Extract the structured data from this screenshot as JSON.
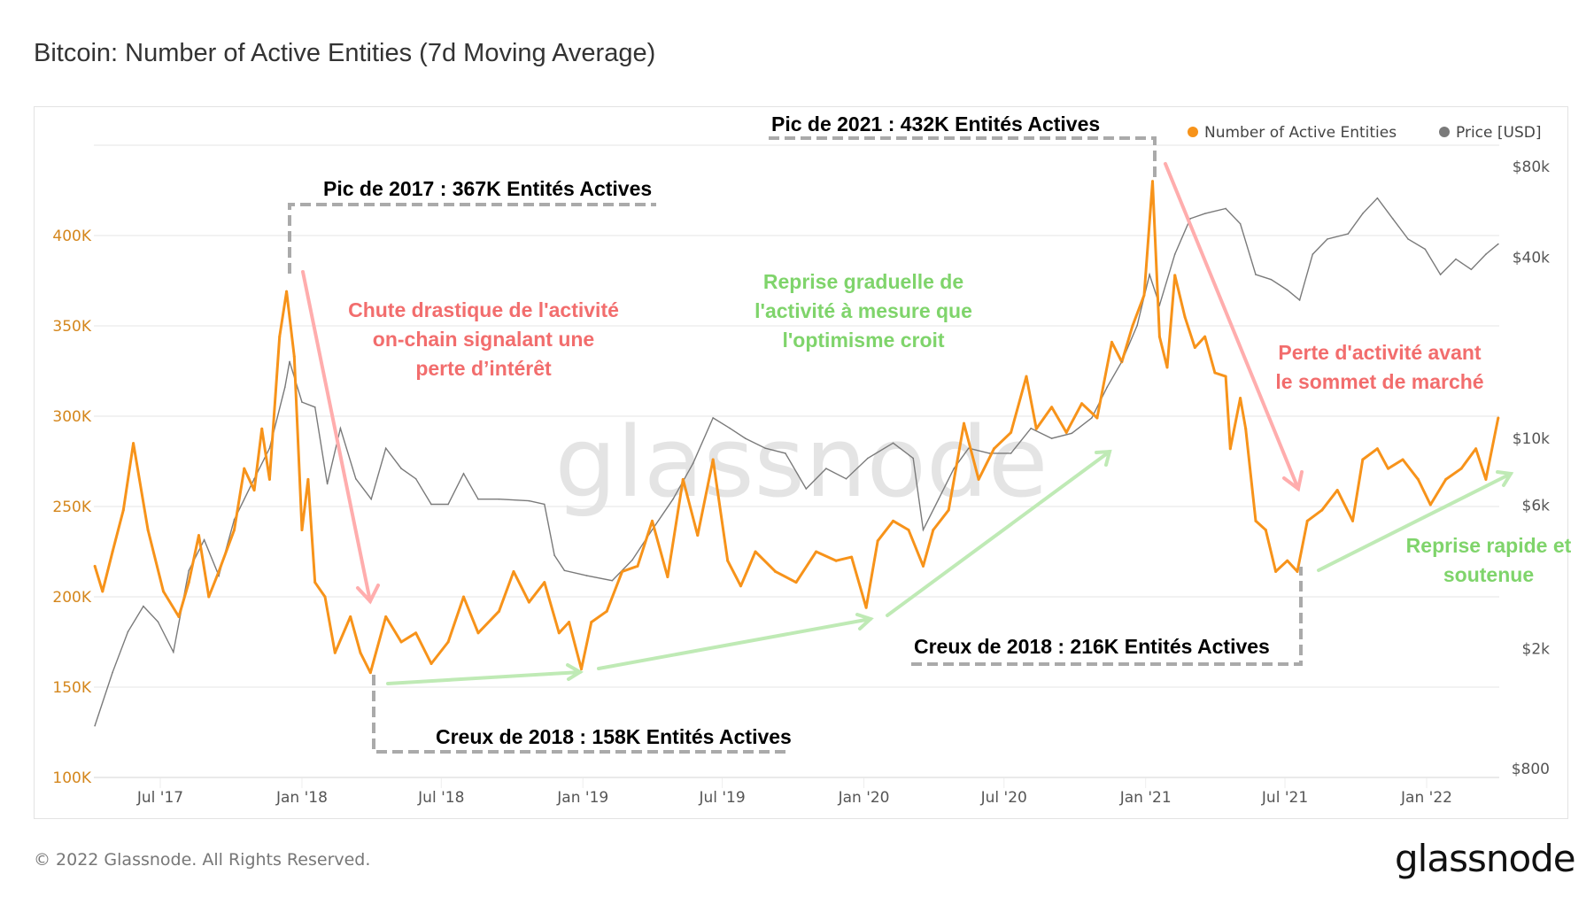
{
  "title": "Bitcoin: Number of Active Entities (7d Moving Average)",
  "footer": {
    "copyright": "© 2022 Glassnode. All Rights Reserved.",
    "logo": "glassnode"
  },
  "watermark": "glassnode",
  "colors": {
    "entities": "#f7931a",
    "price": "#7a7a7a",
    "red_annotation": "#f26d6d",
    "green_annotation": "#7fd46b",
    "red_arrow": "#ffadad",
    "green_arrow": "#bfeab5",
    "dashed": "#aaaaaa"
  },
  "annotations": {
    "peak_2017": "Pic de 2017 : 367K Entités Actives",
    "peak_2021": "Pic de 2021 : 432K Entités Actives",
    "trough_2018_a": "Creux de 2018 : 158K Entités Actives",
    "trough_2018_b": "Creux de 2018 : 216K Entités Actives",
    "drop_text": [
      "Chute drastique de l'activité",
      "on-chain signalant une",
      "perte d’intérêt"
    ],
    "recovery_text": [
      "Reprise graduelle de",
      "l'activité à mesure que",
      "l'optimisme croit"
    ],
    "loss_text": [
      "Perte d'activité avant",
      "le sommet de marché"
    ],
    "rapid_text": [
      "Reprise rapide et",
      "soutenue"
    ]
  },
  "chart_data": {
    "type": "line",
    "title": "Bitcoin: Number of Active Entities (7d Moving Average)",
    "legend_position": "top-right",
    "grid": true,
    "x_ticks": [
      "Jul '17",
      "Jan '18",
      "Jul '18",
      "Jan '19",
      "Jul '19",
      "Jan '20",
      "Jul '20",
      "Jan '21",
      "Jul '21",
      "Jan '22"
    ],
    "y_left": {
      "ticks": [
        "100K",
        "150K",
        "200K",
        "250K",
        "300K",
        "350K",
        "400K"
      ],
      "range": [
        100000,
        450000
      ]
    },
    "y_right": {
      "scale": "log",
      "ticks": [
        "$800",
        "$2k",
        "$6k",
        "$10k",
        "$40k",
        "$80k"
      ],
      "tick_values": [
        800,
        2000,
        6000,
        10000,
        40000,
        80000
      ]
    },
    "series": [
      {
        "name": "Number of Active Entities",
        "axis": "left",
        "points": [
          [
            "2017-04-07",
            217000
          ],
          [
            "2017-04-17",
            203000
          ],
          [
            "2017-04-30",
            225000
          ],
          [
            "2017-05-14",
            248000
          ],
          [
            "2017-05-27",
            285000
          ],
          [
            "2017-06-15",
            237000
          ],
          [
            "2017-07-05",
            203000
          ],
          [
            "2017-07-25",
            189000
          ],
          [
            "2017-08-07",
            208000
          ],
          [
            "2017-08-20",
            234000
          ],
          [
            "2017-09-02",
            200000
          ],
          [
            "2017-09-15",
            214000
          ],
          [
            "2017-10-05",
            237000
          ],
          [
            "2017-10-18",
            271000
          ],
          [
            "2017-10-31",
            259000
          ],
          [
            "2017-11-10",
            293000
          ],
          [
            "2017-11-20",
            265000
          ],
          [
            "2017-12-03",
            344000
          ],
          [
            "2017-12-12",
            369000
          ],
          [
            "2017-12-22",
            333000
          ],
          [
            "2018-01-01",
            237000
          ],
          [
            "2018-01-09",
            265000
          ],
          [
            "2018-01-18",
            208000
          ],
          [
            "2018-01-31",
            200000
          ],
          [
            "2018-02-13",
            169000
          ],
          [
            "2018-03-05",
            189000
          ],
          [
            "2018-03-18",
            169000
          ],
          [
            "2018-03-31",
            158000
          ],
          [
            "2018-04-20",
            189000
          ],
          [
            "2018-05-10",
            175000
          ],
          [
            "2018-05-29",
            180000
          ],
          [
            "2018-06-18",
            163000
          ],
          [
            "2018-07-10",
            175000
          ],
          [
            "2018-07-30",
            200000
          ],
          [
            "2018-08-18",
            180000
          ],
          [
            "2018-09-14",
            192000
          ],
          [
            "2018-10-03",
            214000
          ],
          [
            "2018-10-23",
            197000
          ],
          [
            "2018-11-12",
            208000
          ],
          [
            "2018-12-01",
            180000
          ],
          [
            "2018-12-14",
            186000
          ],
          [
            "2018-12-30",
            160000
          ],
          [
            "2019-01-12",
            186000
          ],
          [
            "2019-02-01",
            192000
          ],
          [
            "2019-02-21",
            214000
          ],
          [
            "2019-03-13",
            217000
          ],
          [
            "2019-04-01",
            242000
          ],
          [
            "2019-04-21",
            211000
          ],
          [
            "2019-05-11",
            265000
          ],
          [
            "2019-05-30",
            234000
          ],
          [
            "2019-06-19",
            276000
          ],
          [
            "2019-07-08",
            220000
          ],
          [
            "2019-07-25",
            206000
          ],
          [
            "2019-08-13",
            225000
          ],
          [
            "2019-09-08",
            214000
          ],
          [
            "2019-10-05",
            208000
          ],
          [
            "2019-10-31",
            225000
          ],
          [
            "2019-11-26",
            220000
          ],
          [
            "2019-12-16",
            222000
          ],
          [
            "2020-01-04",
            194000
          ],
          [
            "2020-01-19",
            231000
          ],
          [
            "2020-02-08",
            242000
          ],
          [
            "2020-02-28",
            237000
          ],
          [
            "2020-03-18",
            217000
          ],
          [
            "2020-03-31",
            237000
          ],
          [
            "2020-04-20",
            248000
          ],
          [
            "2020-05-10",
            296000
          ],
          [
            "2020-05-29",
            265000
          ],
          [
            "2020-06-18",
            282000
          ],
          [
            "2020-07-10",
            291000
          ],
          [
            "2020-07-30",
            322000
          ],
          [
            "2020-08-12",
            293000
          ],
          [
            "2020-09-01",
            305000
          ],
          [
            "2020-09-20",
            291000
          ],
          [
            "2020-10-10",
            307000
          ],
          [
            "2020-10-30",
            299000
          ],
          [
            "2020-11-18",
            341000
          ],
          [
            "2020-12-01",
            330000
          ],
          [
            "2020-12-15",
            350000
          ],
          [
            "2020-12-30",
            367000
          ],
          [
            "2021-01-10",
            430000
          ],
          [
            "2021-01-19",
            344000
          ],
          [
            "2021-01-29",
            327000
          ],
          [
            "2021-02-08",
            378000
          ],
          [
            "2021-02-21",
            355000
          ],
          [
            "2021-03-06",
            338000
          ],
          [
            "2021-03-19",
            344000
          ],
          [
            "2021-04-01",
            324000
          ],
          [
            "2021-04-15",
            322000
          ],
          [
            "2021-04-21",
            282000
          ],
          [
            "2021-05-04",
            310000
          ],
          [
            "2021-05-11",
            293000
          ],
          [
            "2021-05-24",
            242000
          ],
          [
            "2021-06-06",
            237000
          ],
          [
            "2021-06-19",
            214000
          ],
          [
            "2021-07-04",
            220000
          ],
          [
            "2021-07-17",
            214000
          ],
          [
            "2021-07-30",
            242000
          ],
          [
            "2021-08-18",
            248000
          ],
          [
            "2021-09-07",
            259000
          ],
          [
            "2021-09-27",
            242000
          ],
          [
            "2021-10-10",
            276000
          ],
          [
            "2021-10-29",
            282000
          ],
          [
            "2021-11-12",
            271000
          ],
          [
            "2021-12-01",
            276000
          ],
          [
            "2021-12-21",
            265000
          ],
          [
            "2022-01-06",
            251000
          ],
          [
            "2022-01-26",
            265000
          ],
          [
            "2022-02-15",
            271000
          ],
          [
            "2022-03-06",
            282000
          ],
          [
            "2022-03-19",
            265000
          ],
          [
            "2022-04-04",
            299000
          ]
        ]
      },
      {
        "name": "Price [USD]",
        "axis": "right",
        "points": [
          [
            "2017-04-07",
            1110
          ],
          [
            "2017-04-30",
            1670
          ],
          [
            "2017-05-20",
            2280
          ],
          [
            "2017-06-09",
            2770
          ],
          [
            "2017-06-28",
            2460
          ],
          [
            "2017-07-18",
            1950
          ],
          [
            "2017-08-07",
            3640
          ],
          [
            "2017-08-27",
            4600
          ],
          [
            "2017-09-15",
            3500
          ],
          [
            "2017-10-05",
            5370
          ],
          [
            "2017-10-31",
            7340
          ],
          [
            "2017-11-20",
            9270
          ],
          [
            "2017-12-10",
            14800
          ],
          [
            "2017-12-16",
            18000
          ],
          [
            "2018-01-01",
            13200
          ],
          [
            "2018-01-18",
            12700
          ],
          [
            "2018-02-03",
            7060
          ],
          [
            "2018-02-20",
            10800
          ],
          [
            "2018-03-12",
            7340
          ],
          [
            "2018-04-01",
            6280
          ],
          [
            "2018-04-20",
            9270
          ],
          [
            "2018-05-10",
            7940
          ],
          [
            "2018-05-29",
            7340
          ],
          [
            "2018-06-18",
            6040
          ],
          [
            "2018-07-10",
            6040
          ],
          [
            "2018-07-30",
            7640
          ],
          [
            "2018-08-18",
            6280
          ],
          [
            "2018-09-14",
            6280
          ],
          [
            "2018-10-23",
            6200
          ],
          [
            "2018-11-12",
            6040
          ],
          [
            "2018-11-25",
            4090
          ],
          [
            "2018-12-08",
            3640
          ],
          [
            "2019-01-06",
            3500
          ],
          [
            "2019-02-08",
            3370
          ],
          [
            "2019-03-06",
            3940
          ],
          [
            "2019-04-01",
            4970
          ],
          [
            "2019-04-28",
            6280
          ],
          [
            "2019-05-24",
            8260
          ],
          [
            "2019-06-19",
            11700
          ],
          [
            "2019-07-11",
            10800
          ],
          [
            "2019-07-31",
            10000
          ],
          [
            "2019-08-26",
            9270
          ],
          [
            "2019-09-21",
            8920
          ],
          [
            "2019-10-18",
            6800
          ],
          [
            "2019-11-13",
            7940
          ],
          [
            "2019-12-09",
            7340
          ],
          [
            "2020-01-06",
            8590
          ],
          [
            "2020-02-08",
            9650
          ],
          [
            "2020-03-05",
            8590
          ],
          [
            "2020-03-18",
            4970
          ],
          [
            "2020-04-07",
            6280
          ],
          [
            "2020-04-27",
            7940
          ],
          [
            "2020-05-16",
            9270
          ],
          [
            "2020-06-12",
            8920
          ],
          [
            "2020-07-10",
            8920
          ],
          [
            "2020-08-05",
            10800
          ],
          [
            "2020-09-01",
            10000
          ],
          [
            "2020-09-27",
            10400
          ],
          [
            "2020-10-23",
            11700
          ],
          [
            "2020-11-12",
            14800
          ],
          [
            "2020-12-01",
            18000
          ],
          [
            "2020-12-21",
            23700
          ],
          [
            "2021-01-06",
            35000
          ],
          [
            "2021-01-19",
            27700
          ],
          [
            "2021-02-08",
            40900
          ],
          [
            "2021-02-28",
            53700
          ],
          [
            "2021-03-19",
            55800
          ],
          [
            "2021-04-15",
            58000
          ],
          [
            "2021-05-04",
            51600
          ],
          [
            "2021-05-24",
            35000
          ],
          [
            "2021-06-13",
            33700
          ],
          [
            "2021-07-04",
            31100
          ],
          [
            "2021-07-20",
            28800
          ],
          [
            "2021-08-06",
            40900
          ],
          [
            "2021-08-25",
            45900
          ],
          [
            "2021-09-21",
            47800
          ],
          [
            "2021-10-10",
            55800
          ],
          [
            "2021-10-29",
            62800
          ],
          [
            "2021-11-18",
            53700
          ],
          [
            "2021-12-08",
            45900
          ],
          [
            "2021-12-30",
            42500
          ],
          [
            "2022-01-19",
            35000
          ],
          [
            "2022-02-08",
            39400
          ],
          [
            "2022-02-28",
            36400
          ],
          [
            "2022-03-19",
            40900
          ],
          [
            "2022-04-04",
            44200
          ]
        ]
      }
    ]
  }
}
